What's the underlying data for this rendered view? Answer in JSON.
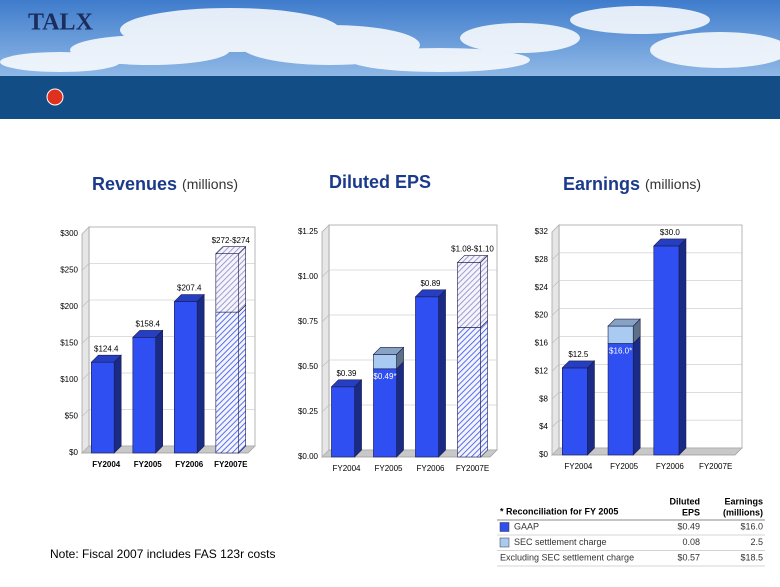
{
  "logo": "TALX",
  "chart_data": [
    {
      "type": "bar3d",
      "title": "Revenues",
      "subtitle": "(millions)",
      "categories": [
        "FY2004",
        "FY2005",
        "FY2006",
        "FY2007E"
      ],
      "ylim": [
        0,
        300
      ],
      "yticks": [
        {
          "value": 0,
          "label": "$0"
        },
        {
          "value": 50,
          "label": "$50"
        },
        {
          "value": 100,
          "label": "$100"
        },
        {
          "value": 150,
          "label": "$150"
        },
        {
          "value": 200,
          "label": "$200"
        },
        {
          "value": 250,
          "label": "$250"
        },
        {
          "value": 300,
          "label": "$300"
        }
      ],
      "grid": true,
      "series": [
        {
          "color": "#2f4ff2",
          "hatched": false,
          "values": [
            124.4,
            158.4,
            207.4,
            null
          ],
          "value_labels": [
            "$124.4",
            "$158.4",
            "$207.4",
            null
          ]
        },
        {
          "color": "#2f4ff2",
          "hatched": true,
          "values": [
            null,
            null,
            null,
            193
          ]
        },
        {
          "color": "#8c86c8",
          "hatched": true,
          "values": [
            null,
            null,
            null,
            80
          ]
        }
      ],
      "annotations": [
        "$272-$274"
      ]
    },
    {
      "type": "bar3d",
      "title": "Diluted EPS",
      "categories": [
        "FY2004",
        "FY2005",
        "FY2006",
        "FY2007E"
      ],
      "ylim": [
        0,
        1.25
      ],
      "yticks": [
        {
          "value": 0,
          "label": "$0.00"
        },
        {
          "value": 0.25,
          "label": "$0.25"
        },
        {
          "value": 0.5,
          "label": "$0.50"
        },
        {
          "value": 0.75,
          "label": "$0.75"
        },
        {
          "value": 1,
          "label": "$1.00"
        },
        {
          "value": 1.25,
          "label": "$1.25"
        }
      ],
      "grid": true,
      "series": [
        {
          "color": "#2f4ff2",
          "hatched": false,
          "values": [
            0.39,
            0.49,
            0.89,
            null
          ],
          "value_labels": [
            "$0.39",
            "$0.49*",
            "$0.89",
            null
          ]
        },
        {
          "color": "#a9cbf2",
          "hatched": false,
          "values": [
            null,
            0.08,
            null,
            null
          ]
        },
        {
          "color": "#2f4ff2",
          "hatched": true,
          "values": [
            null,
            null,
            null,
            0.72
          ]
        },
        {
          "color": "#8c86c8",
          "hatched": true,
          "values": [
            null,
            null,
            null,
            0.36
          ]
        }
      ],
      "annotations": [
        "$1.08-$1.10"
      ]
    },
    {
      "type": "bar3d",
      "title": "Earnings",
      "subtitle": "(millions)",
      "categories": [
        "FY2004",
        "FY2005",
        "FY2006",
        "FY2007E"
      ],
      "ylim": [
        0,
        32
      ],
      "yticks": [
        {
          "value": 0,
          "label": "$0"
        },
        {
          "value": 4,
          "label": "$4"
        },
        {
          "value": 8,
          "label": "$8"
        },
        {
          "value": 12,
          "label": "$12"
        },
        {
          "value": 16,
          "label": "$16"
        },
        {
          "value": 20,
          "label": "$20"
        },
        {
          "value": 24,
          "label": "$24"
        },
        {
          "value": 28,
          "label": "$28"
        },
        {
          "value": 32,
          "label": "$32"
        }
      ],
      "grid": true,
      "series": [
        {
          "color": "#2f4ff2",
          "hatched": false,
          "values": [
            12.5,
            16.0,
            30.0,
            null
          ],
          "value_labels": [
            "$12.5",
            "$16.0*",
            "$30.0",
            null
          ]
        },
        {
          "color": "#a9cbf2",
          "hatched": false,
          "values": [
            null,
            2.5,
            null,
            null
          ]
        }
      ]
    }
  ],
  "table": {
    "title": "* Reconciliation for FY 2005",
    "headers": [
      [
        "Diluted",
        "EPS"
      ],
      [
        "Earnings",
        "(millions)"
      ]
    ],
    "rows": [
      {
        "label": "GAAP",
        "color": "#2f4ff2",
        "cells": [
          "$0.49",
          "$16.0"
        ]
      },
      {
        "label": "SEC settlement charge",
        "color": "#a9cbf2",
        "cells": [
          "0.08",
          "2.5"
        ]
      },
      {
        "label": "Excluding SEC settlement charge",
        "cells": [
          "$0.57",
          "$18.5"
        ]
      }
    ]
  },
  "note": "Note:  Fiscal 2007 includes FAS 123r costs"
}
